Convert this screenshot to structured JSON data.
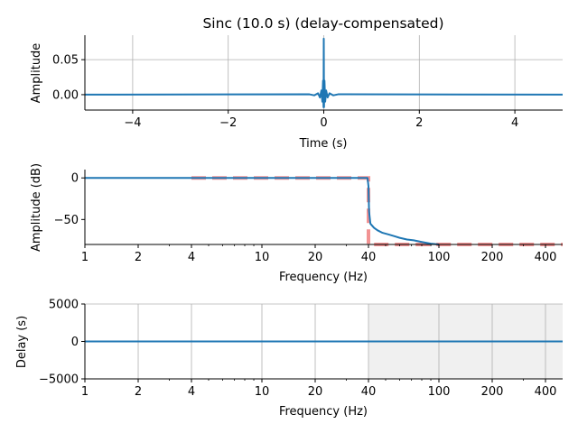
{
  "figure": {
    "title": "Sinc (10.0 s) (delay-compensated)"
  },
  "colors": {
    "series": "#1f77b4",
    "ideal": "#f08080",
    "grid": "#b0b0b0",
    "shade": "#f0f0f0"
  },
  "chart_data": [
    {
      "type": "line",
      "xlabel": "Time (s)",
      "ylabel": "Amplitude",
      "xlim": [
        -5,
        5
      ],
      "ylim": [
        -0.022,
        0.085
      ],
      "xticks": [
        -4,
        -2,
        0,
        2,
        4
      ],
      "xtick_labels": [
        "−4",
        "−2",
        "0",
        "2",
        "4"
      ],
      "yticks": [
        0.0,
        0.05
      ],
      "ytick_labels": [
        "0.00",
        "0.05"
      ],
      "grid": true,
      "series": [
        {
          "x": [
            -5,
            -0.3,
            -0.2,
            -0.12,
            -0.08,
            -0.05,
            -0.03,
            -0.015,
            -0.005,
            0,
            0.005,
            0.015,
            0.03,
            0.05,
            0.08,
            0.12,
            0.2,
            0.3,
            5
          ],
          "y": [
            0,
            0.0005,
            -0.001,
            0.002,
            -0.004,
            0.006,
            -0.01,
            0.02,
            -0.018,
            0.08,
            -0.018,
            0.02,
            -0.01,
            0.006,
            -0.004,
            0.002,
            -0.001,
            0.0005,
            0
          ]
        }
      ]
    },
    {
      "type": "line",
      "xscale": "log",
      "xlabel": "Frequency (Hz)",
      "ylabel": "Amplitude (dB)",
      "xlim": [
        1,
        500
      ],
      "ylim": [
        -80,
        10
      ],
      "xticks": [
        1,
        2,
        4,
        10,
        20,
        40,
        100,
        200,
        400
      ],
      "xtick_labels": [
        "1",
        "2",
        "4",
        "10",
        "20",
        "40",
        "100",
        "200",
        "400"
      ],
      "yticks": [
        0,
        -50
      ],
      "ytick_labels": [
        "0",
        "−50"
      ],
      "grid": false,
      "series": [
        {
          "x": [
            1,
            39.5,
            40,
            40.3,
            41,
            43,
            45,
            48,
            52,
            56,
            60,
            66,
            72,
            80,
            90,
            100
          ],
          "y": [
            0,
            0,
            -10,
            -40,
            -55,
            -60,
            -63,
            -66,
            -68,
            -70,
            -72,
            -74,
            -75,
            -77,
            -79,
            -80
          ]
        }
      ],
      "ideal": {
        "x": [
          4,
          40,
          40,
          500
        ],
        "y": [
          0,
          0,
          -80,
          -80
        ]
      }
    },
    {
      "type": "line",
      "xscale": "log",
      "xlabel": "Frequency (Hz)",
      "ylabel": "Delay (s)",
      "xlim": [
        1,
        500
      ],
      "ylim": [
        -5000,
        5000
      ],
      "xticks": [
        1,
        2,
        4,
        10,
        20,
        40,
        100,
        200,
        400
      ],
      "xtick_labels": [
        "1",
        "2",
        "4",
        "10",
        "20",
        "40",
        "100",
        "200",
        "400"
      ],
      "yticks": [
        5000,
        0,
        -5000
      ],
      "ytick_labels": [
        "5000",
        "0",
        "−5000"
      ],
      "grid": true,
      "shaded_region": [
        40,
        500
      ],
      "series": [
        {
          "x": [
            1,
            500
          ],
          "y": [
            0,
            0
          ]
        }
      ]
    }
  ]
}
